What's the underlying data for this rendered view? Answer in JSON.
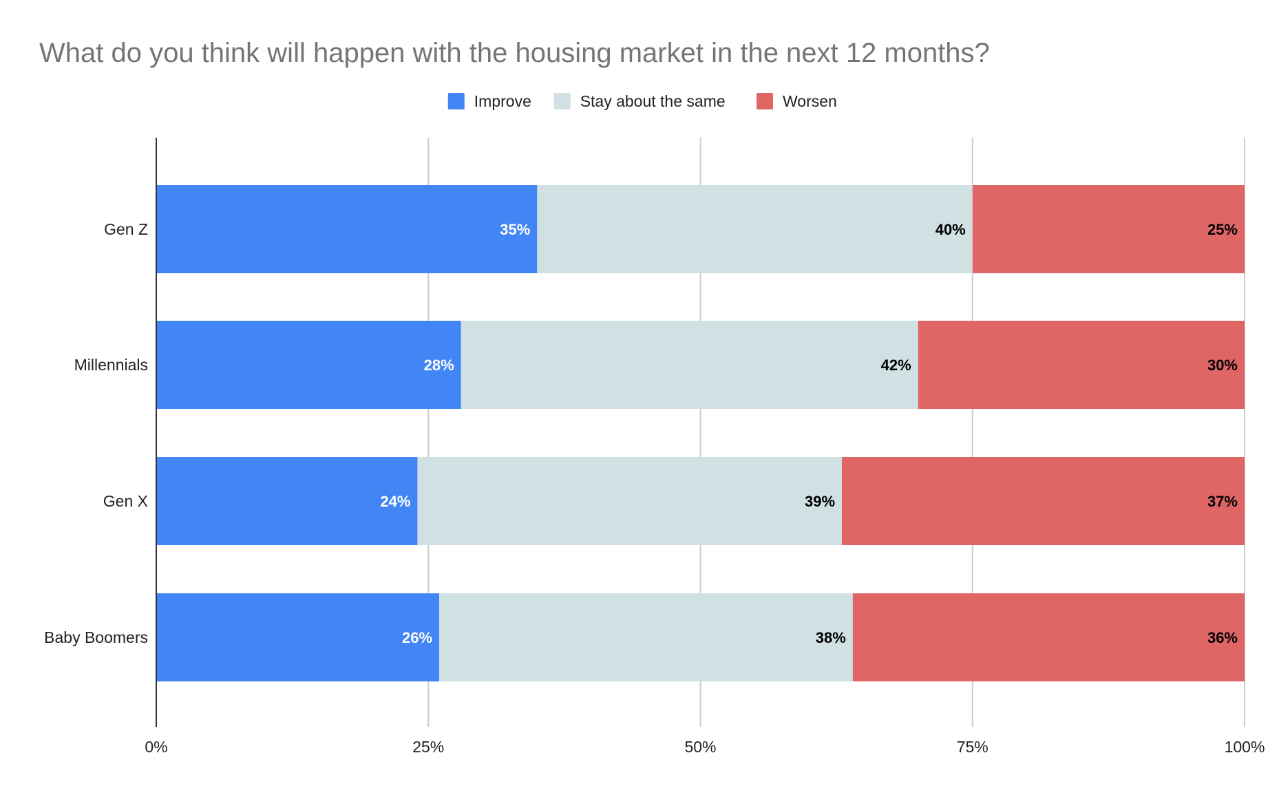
{
  "chart_data": {
    "type": "bar",
    "orientation": "horizontal",
    "stacked": "percent",
    "title": "What do you think will happen with the housing market in the next 12 months?",
    "categories": [
      "Gen Z",
      "Millennials",
      "Gen X",
      "Baby Boomers"
    ],
    "series": [
      {
        "name": "Improve",
        "color": "#4285f4",
        "label_color": "#ffffff",
        "values": [
          35,
          28,
          24,
          26
        ],
        "labels": [
          "35%",
          "28%",
          "24%",
          "26%"
        ]
      },
      {
        "name": "Stay about the same",
        "color": "#d0e0e3",
        "label_color": "#000000",
        "values": [
          40,
          42,
          39,
          38
        ],
        "labels": [
          "40%",
          "42%",
          "39%",
          "38%"
        ]
      },
      {
        "name": "Worsen",
        "color": "#e06666",
        "label_color": "#000000",
        "values": [
          25,
          30,
          37,
          36
        ],
        "labels": [
          "25%",
          "30%",
          "37%",
          "36%"
        ]
      }
    ],
    "xlim": [
      0,
      100
    ],
    "xticks": [
      0,
      25,
      50,
      75,
      100
    ],
    "xtick_labels": [
      "0%",
      "25%",
      "50%",
      "75%",
      "100%"
    ],
    "grid": "vertical",
    "legend": "top-center",
    "title_color": "#757575",
    "axis_color": "#333333",
    "grid_color": "#cccccc"
  }
}
